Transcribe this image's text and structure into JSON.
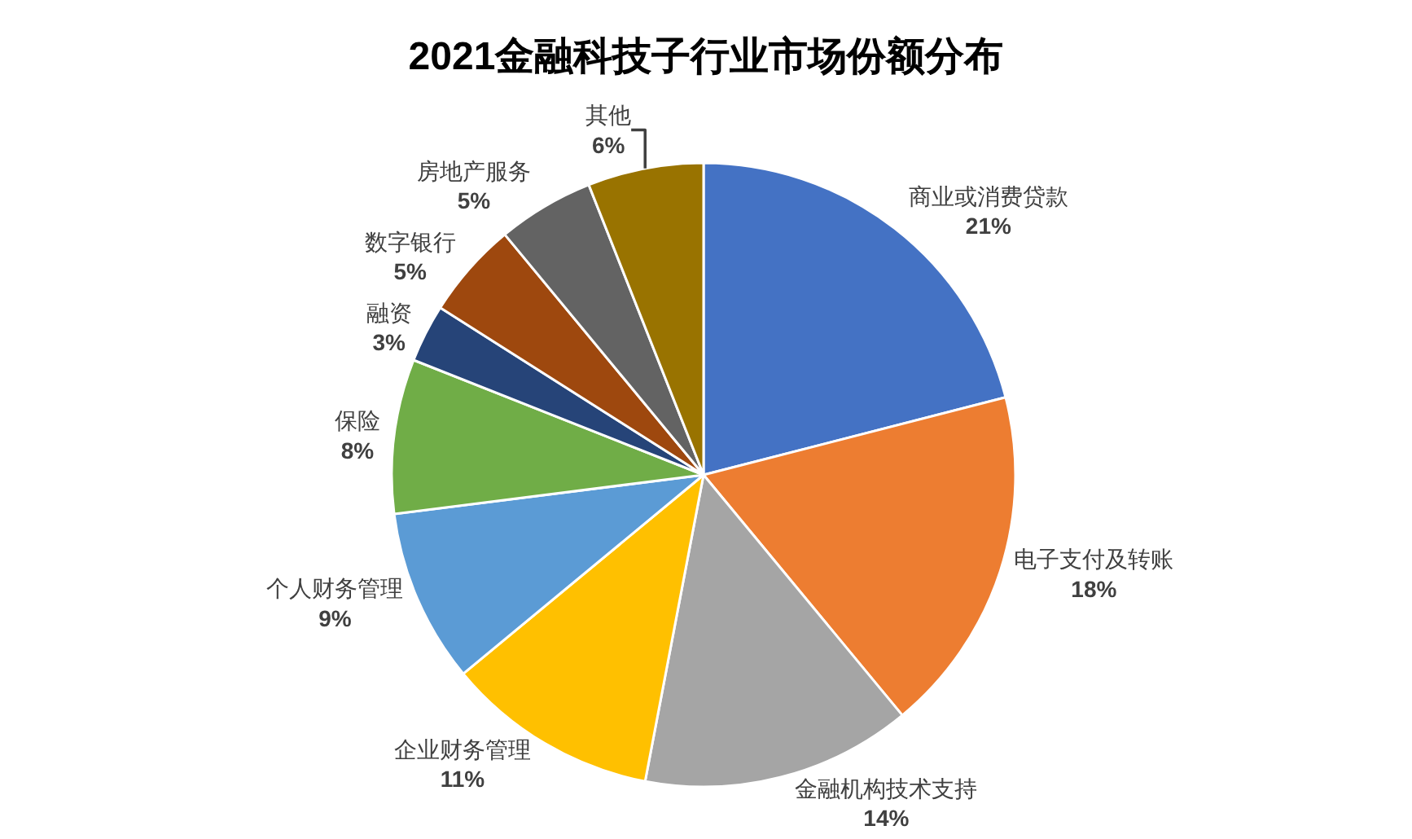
{
  "chart_data": {
    "type": "pie",
    "title": "2021金融科技子行业市场份额分布",
    "categories": [
      "商业或消费贷款",
      "电子支付及转账",
      "金融机构技术支持",
      "企业财务管理",
      "个人财务管理",
      "保险",
      "融资",
      "数字银行",
      "房地产服务",
      "其他"
    ],
    "values": [
      21,
      18,
      14,
      11,
      9,
      8,
      3,
      5,
      5,
      6
    ],
    "value_labels": [
      "21%",
      "18%",
      "14%",
      "11%",
      "9%",
      "8%",
      "3%",
      "5%",
      "5%",
      "6%"
    ],
    "colors": [
      "#4472c4",
      "#ed7d31",
      "#a5a5a5",
      "#ffc000",
      "#5b9bd5",
      "#70ad47",
      "#264478",
      "#9e480e",
      "#636363",
      "#997300"
    ],
    "legend": false
  }
}
